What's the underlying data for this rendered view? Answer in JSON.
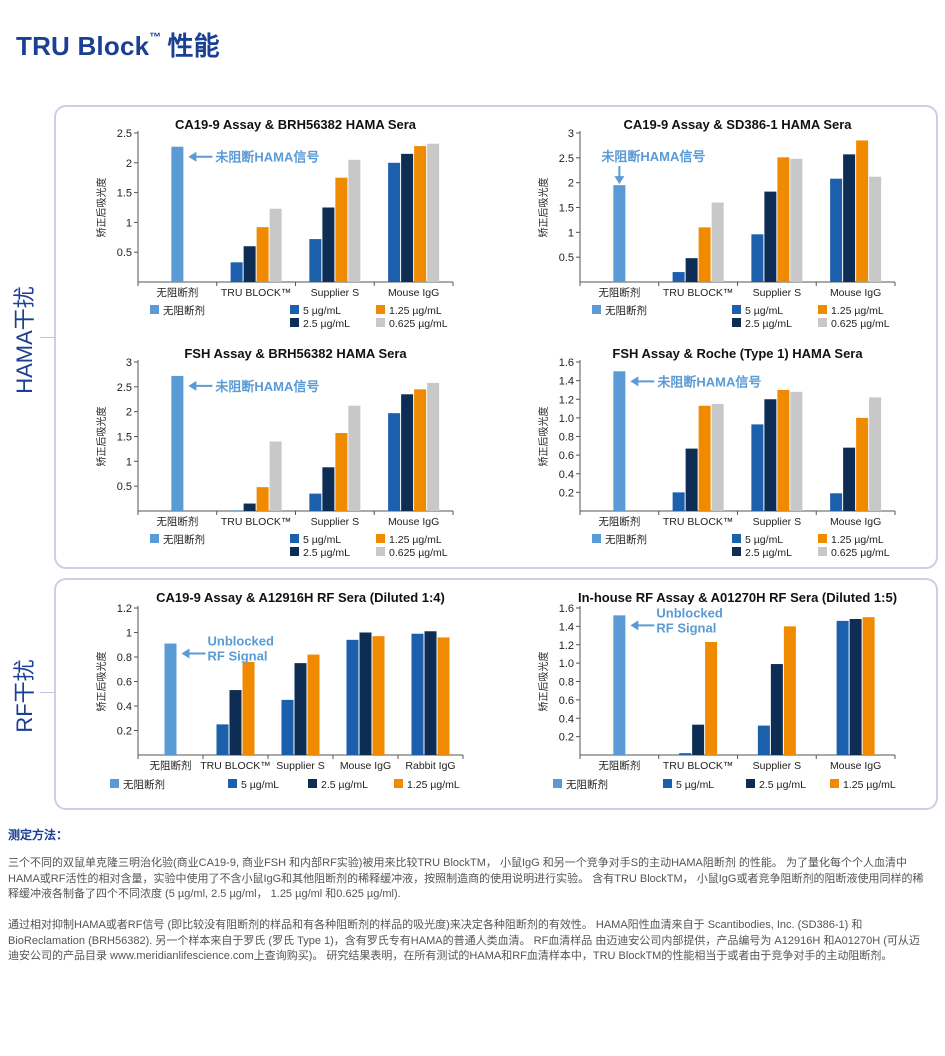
{
  "page": {
    "title": "TRU Block",
    "title_tm": "™",
    "title_suffix": "性能"
  },
  "sections": {
    "hama_label": "HAMA干扰",
    "rf_label": "RF干扰"
  },
  "colors": {
    "no_blocker": "#5b9bd5",
    "c5": "#1b5fad",
    "c25": "#0d2d54",
    "c125": "#f08a00",
    "c0625": "#c8c8c8",
    "annotation": "#5b9bd5",
    "heading": "#1b3f93"
  },
  "chart_data": [
    {
      "id": "chart1",
      "type": "bar",
      "title": "CA19-9 Assay & BRH56382 HAMA Sera",
      "ylabel": "矫正后吸光度",
      "ylim": [
        0,
        2.5
      ],
      "yticks": [
        "0.5",
        "1",
        "1.5",
        "2",
        "2.5"
      ],
      "ytick_values": [
        0.5,
        1,
        1.5,
        2,
        2.5
      ],
      "categories": [
        "无阻断剂",
        "TRU BLOCK™",
        "Supplier S",
        "Mouse IgG"
      ],
      "series": [
        {
          "name": "无阻断剂",
          "key": "no_blocker",
          "values": [
            2.27,
            null,
            null,
            null
          ]
        },
        {
          "name": "5 µg/mL",
          "key": "c5",
          "values": [
            null,
            0.33,
            0.72,
            2.0
          ]
        },
        {
          "name": "2.5 µg/mL",
          "key": "c25",
          "values": [
            null,
            0.6,
            1.25,
            2.15
          ]
        },
        {
          "name": "1.25 µg/mL",
          "key": "c125",
          "values": [
            null,
            0.92,
            1.75,
            2.28
          ]
        },
        {
          "name": "0.625 µg/mL",
          "key": "c0625",
          "values": [
            null,
            1.23,
            2.05,
            2.32
          ]
        }
      ],
      "annotation": [
        "未阻断HAMA信号"
      ]
    },
    {
      "id": "chart2",
      "type": "bar",
      "title": "CA19-9 Assay & SD386-1 HAMA Sera",
      "ylabel": "矫正后吸光度",
      "ylim": [
        0,
        3
      ],
      "yticks": [
        "0.5",
        "1",
        "1.5",
        "2",
        "2.5",
        "3"
      ],
      "ytick_values": [
        0.5,
        1,
        1.5,
        2,
        2.5,
        3
      ],
      "categories": [
        "无阻断剂",
        "TRU BLOCK™",
        "Supplier S",
        "Mouse IgG"
      ],
      "series": [
        {
          "name": "无阻断剂",
          "key": "no_blocker",
          "values": [
            1.95,
            null,
            null,
            null
          ]
        },
        {
          "name": "5 µg/mL",
          "key": "c5",
          "values": [
            null,
            0.2,
            0.96,
            2.08
          ]
        },
        {
          "name": "2.5 µg/mL",
          "key": "c25",
          "values": [
            null,
            0.48,
            1.82,
            2.57
          ]
        },
        {
          "name": "1.25 µg/mL",
          "key": "c125",
          "values": [
            null,
            1.1,
            2.51,
            2.85
          ]
        },
        {
          "name": "0.625 µg/mL",
          "key": "c0625",
          "values": [
            null,
            1.6,
            2.48,
            2.12
          ]
        }
      ],
      "annotation": [
        "未阻断HAMA信号"
      ]
    },
    {
      "id": "chart3",
      "type": "bar",
      "title": "FSH Assay & BRH56382 HAMA Sera",
      "ylabel": "矫正后吸光度",
      "ylim": [
        0,
        3
      ],
      "yticks": [
        "0.5",
        "1",
        "1.5",
        "2",
        "2.5",
        "3"
      ],
      "ytick_values": [
        0.5,
        1,
        1.5,
        2,
        2.5,
        3
      ],
      "categories": [
        "无阻断剂",
        "TRU BLOCK™",
        "Supplier S",
        "Mouse IgG"
      ],
      "series": [
        {
          "name": "无阻断剂",
          "key": "no_blocker",
          "values": [
            2.72,
            null,
            null,
            null
          ]
        },
        {
          "name": "5 µg/mL",
          "key": "c5",
          "values": [
            null,
            0.0,
            0.35,
            1.97
          ]
        },
        {
          "name": "2.5 µg/mL",
          "key": "c25",
          "values": [
            null,
            0.15,
            0.88,
            2.35
          ]
        },
        {
          "name": "1.25 µg/mL",
          "key": "c125",
          "values": [
            null,
            0.48,
            1.57,
            2.45
          ]
        },
        {
          "name": "0.625 µg/mL",
          "key": "c0625",
          "values": [
            null,
            1.4,
            2.12,
            2.58
          ]
        }
      ],
      "annotation": [
        "未阻断HAMA信号"
      ]
    },
    {
      "id": "chart4",
      "type": "bar",
      "title": "FSH Assay & Roche (Type 1) HAMA Sera",
      "ylabel": "矫正后吸光度",
      "ylim": [
        0,
        1.6
      ],
      "yticks": [
        "0.2",
        "0.4",
        "0.6",
        "0.8",
        "1.0",
        "1.2",
        "1.4",
        "1.6"
      ],
      "ytick_values": [
        0.2,
        0.4,
        0.6,
        0.8,
        1.0,
        1.2,
        1.4,
        1.6
      ],
      "categories": [
        "无阻断剂",
        "TRU BLOCK™",
        "Supplier S",
        "Mouse IgG"
      ],
      "series": [
        {
          "name": "无阻断剂",
          "key": "no_blocker",
          "values": [
            1.5,
            null,
            null,
            null
          ]
        },
        {
          "name": "5 µg/mL",
          "key": "c5",
          "values": [
            null,
            0.2,
            0.93,
            0.19
          ]
        },
        {
          "name": "2.5 µg/mL",
          "key": "c25",
          "values": [
            null,
            0.67,
            1.2,
            0.68
          ]
        },
        {
          "name": "1.25 µg/mL",
          "key": "c125",
          "values": [
            null,
            1.13,
            1.3,
            1.0
          ]
        },
        {
          "name": "0.625 µg/mL",
          "key": "c0625",
          "values": [
            null,
            1.15,
            1.28,
            1.22
          ]
        }
      ],
      "annotation": [
        "未阻断HAMA信号"
      ]
    },
    {
      "id": "chart5",
      "type": "bar",
      "title": "CA19-9 Assay & A12916H RF Sera (Diluted 1:4)",
      "ylabel": "矫正后吸光度",
      "ylim": [
        0,
        1.2
      ],
      "yticks": [
        "0.2",
        "0.4",
        "0.6",
        "0.8",
        "1",
        "1.2"
      ],
      "ytick_values": [
        0.2,
        0.4,
        0.6,
        0.8,
        1,
        1.2
      ],
      "categories": [
        "无阻断剂",
        "TRU BLOCK™",
        "Supplier S",
        "Mouse IgG",
        "Rabbit IgG"
      ],
      "series": [
        {
          "name": "无阻断剂",
          "key": "no_blocker",
          "values": [
            0.91,
            null,
            null,
            null,
            null
          ]
        },
        {
          "name": "5 µg/mL",
          "key": "c5",
          "values": [
            null,
            0.25,
            0.45,
            0.94,
            0.99
          ]
        },
        {
          "name": "2.5 µg/mL",
          "key": "c25",
          "values": [
            null,
            0.53,
            0.75,
            1.0,
            1.01
          ]
        },
        {
          "name": "1.25 µg/mL",
          "key": "c125",
          "values": [
            null,
            0.76,
            0.82,
            0.97,
            0.96
          ]
        }
      ],
      "annotation": [
        "Unblocked",
        "RF Signal"
      ]
    },
    {
      "id": "chart6",
      "type": "bar",
      "title": "In-house RF Assay & A01270H RF Sera (Diluted 1:5)",
      "ylabel": "矫正后吸光度",
      "ylim": [
        0,
        1.6
      ],
      "yticks": [
        "0.2",
        "0.4",
        "0.6",
        "0.8",
        "1.0",
        "1.2",
        "1.4",
        "1.6"
      ],
      "ytick_values": [
        0.2,
        0.4,
        0.6,
        0.8,
        1.0,
        1.2,
        1.4,
        1.6
      ],
      "categories": [
        "无阻断剂",
        "TRU BLOCK™",
        "Supplier S",
        "Mouse IgG"
      ],
      "series": [
        {
          "name": "无阻断剂",
          "key": "no_blocker",
          "values": [
            1.52,
            null,
            null,
            null
          ]
        },
        {
          "name": "5 µg/mL",
          "key": "c5",
          "values": [
            null,
            0.02,
            0.32,
            1.46
          ]
        },
        {
          "name": "2.5 µg/mL",
          "key": "c25",
          "values": [
            null,
            0.33,
            0.99,
            1.48
          ]
        },
        {
          "name": "1.25 µg/mL",
          "key": "c125",
          "values": [
            null,
            1.23,
            1.4,
            1.5
          ]
        }
      ],
      "annotation": [
        "Unblocked",
        "RF Signal"
      ]
    }
  ],
  "method": {
    "heading": "测定方法：",
    "para1": "三个不同的双鼠单克隆三明治化验(商业CA19-9, 商业FSH 和内部RF实验)被用来比较TRU BlockTM， 小鼠IgG 和另一个竞争对手S的主动HAMA阻断剂 的性能。 为了量化每个个人血清中HAMA或RF活性的相对含量，实验中使用了不含小鼠IgG和其他阻断剂的稀释缓冲液，按照制造商的使用说明进行实验。 含有TRU BlockTM， 小鼠IgG或者竞争阻断剂的阻断液使用同样的稀释缓冲液各制备了四个不同浓度 (5 µg/ml, 2.5 µg/ml， 1.25 µg/ml 和0.625 µg/ml).",
    "para2": "通过相对抑制HAMA或者RF信号 (即比较没有阻断剂的样品和有各种阻断剂的样品的吸光度)来决定各种阻断剂的有效性。 HAMA阳性血清来自于 Scantibodies, Inc. (SD386-1) 和 BioReclamation (BRH56382). 另一个样本来自于罗氏 (罗氏 Type 1)，含有罗氏专有HAMA的普通人类血清。 RF血清样品 由迈迪安公司内部提供，产品编号为 A12916H 和A01270H (可从迈迪安公司的产品目录 www.meridianlifescience.com上查询购买)。 研究结果表明，在所有测试的HAMA和RF血清样本中，TRU BlockTM的性能相当于或者由于竞争对手的主动阻断剂。"
  }
}
